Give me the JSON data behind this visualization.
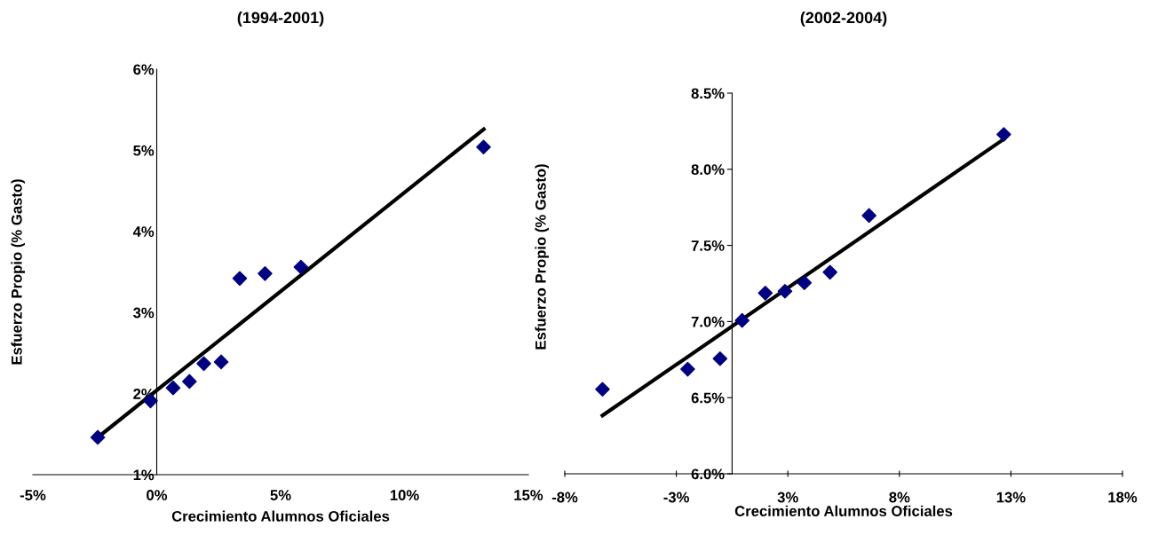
{
  "chart_data": [
    {
      "type": "scatter",
      "title": "(1994-2001)",
      "xlabel": "Crecimiento Alumnos Oficiales",
      "ylabel": "Esfuerzo Propio (% Gasto)",
      "xlim": [
        -5,
        15
      ],
      "xticks": [
        {
          "value": -5,
          "label": "-5%"
        },
        {
          "value": 0,
          "label": "0%"
        },
        {
          "value": 5,
          "label": "5%"
        },
        {
          "value": 10,
          "label": "10%"
        },
        {
          "value": 15,
          "label": "15%"
        }
      ],
      "ylim": [
        1,
        6
      ],
      "yticks": [
        {
          "value": 1,
          "label": "1%"
        },
        {
          "value": 2,
          "label": "2%"
        },
        {
          "value": 3,
          "label": "3%"
        },
        {
          "value": 4,
          "label": "4%"
        },
        {
          "value": 5,
          "label": "5%"
        },
        {
          "value": 6,
          "label": "6%"
        }
      ],
      "grid": false,
      "series": [
        {
          "marker": "diamond",
          "color": "#000080",
          "x": [
            -2.38,
            -0.25,
            0.66,
            1.32,
            1.9,
            2.6,
            3.35,
            4.37,
            5.82,
            13.19
          ],
          "values": [
            1.46,
            1.91,
            2.07,
            2.15,
            2.37,
            2.39,
            3.42,
            3.48,
            3.56,
            5.04
          ]
        },
        {
          "type": "line",
          "color": "#000000",
          "x": [
            -2.38,
            13.2
          ],
          "values": [
            1.46,
            5.26
          ]
        }
      ]
    },
    {
      "type": "scatter",
      "title": "(2002-2004)",
      "xlabel": "Crecimiento Alumnos Oficiales",
      "ylabel": "Esfuerzo Propio (% Gasto)",
      "xlim": [
        -7.5,
        17.5
      ],
      "xticks": [
        {
          "value": -7.5,
          "label": "-8%"
        },
        {
          "value": -2.5,
          "label": "-3%"
        },
        {
          "value": 2.5,
          "label": "3%"
        },
        {
          "value": 7.5,
          "label": "8%"
        },
        {
          "value": 12.5,
          "label": "13%"
        },
        {
          "value": 17.5,
          "label": "18%"
        }
      ],
      "ylim": [
        6,
        8.5
      ],
      "yticks": [
        {
          "value": 6,
          "label": "6.0%"
        },
        {
          "value": 6.5,
          "label": "6.5%"
        },
        {
          "value": 7,
          "label": "7.0%"
        },
        {
          "value": 7.5,
          "label": "7.5%"
        },
        {
          "value": 8,
          "label": "8.0%"
        },
        {
          "value": 8.5,
          "label": "8.5%"
        }
      ],
      "grid": false,
      "series": [
        {
          "marker": "diamond",
          "color": "#000080",
          "x": [
            -5.81,
            -1.99,
            -0.54,
            0.45,
            1.49,
            2.37,
            3.24,
            4.39,
            6.14,
            12.18
          ],
          "values": [
            6.555,
            6.687,
            6.756,
            7.007,
            7.187,
            7.199,
            7.255,
            7.324,
            7.696,
            8.229
          ]
        },
        {
          "type": "line",
          "color": "#000000",
          "x": [
            -5.81,
            12.18
          ],
          "values": [
            6.383,
            8.198
          ]
        }
      ]
    }
  ]
}
